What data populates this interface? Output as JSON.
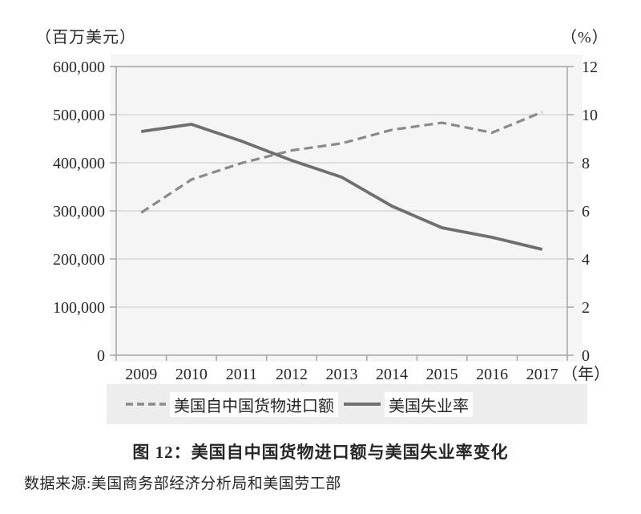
{
  "figure": {
    "caption": "图 12：美国自中国货物进口额与美国失业率变化",
    "source": "数据来源:美国商务部经济分析局和美国劳工部"
  },
  "chart_data": {
    "type": "line",
    "title": "美国自中国货物进口额与美国失业率变化",
    "categories": [
      "2009",
      "2010",
      "2011",
      "2012",
      "2013",
      "2014",
      "2015",
      "2016",
      "2017"
    ],
    "x_unit_label": "（年）",
    "left_axis": {
      "label": "（百万美元）",
      "min": 0,
      "max": 600000,
      "step": 100000,
      "tick_labels_top_to_bottom": [
        "600,000",
        "500,000",
        "400,000",
        "300,000",
        "200,000",
        "100,000",
        "0"
      ]
    },
    "right_axis": {
      "label": "（%）",
      "min": 0,
      "max": 12,
      "step": 2,
      "tick_labels_top_to_bottom": [
        "12",
        "10",
        "8",
        "6",
        "4",
        "2",
        "0"
      ]
    },
    "grid": "horizontal",
    "legend_position": "bottom",
    "series": [
      {
        "name": "美国自中国货物进口额",
        "axis": "left",
        "line_style": "dashed",
        "color": "#8a8a8a",
        "values": [
          296400,
          365000,
          399400,
          425600,
          440400,
          468500,
          483200,
          462600,
          505500
        ]
      },
      {
        "name": "美国失业率",
        "axis": "right",
        "line_style": "solid",
        "color": "#6f6f6f",
        "values": [
          9.3,
          9.6,
          8.9,
          8.1,
          7.4,
          6.2,
          5.3,
          4.9,
          4.4
        ]
      }
    ]
  }
}
